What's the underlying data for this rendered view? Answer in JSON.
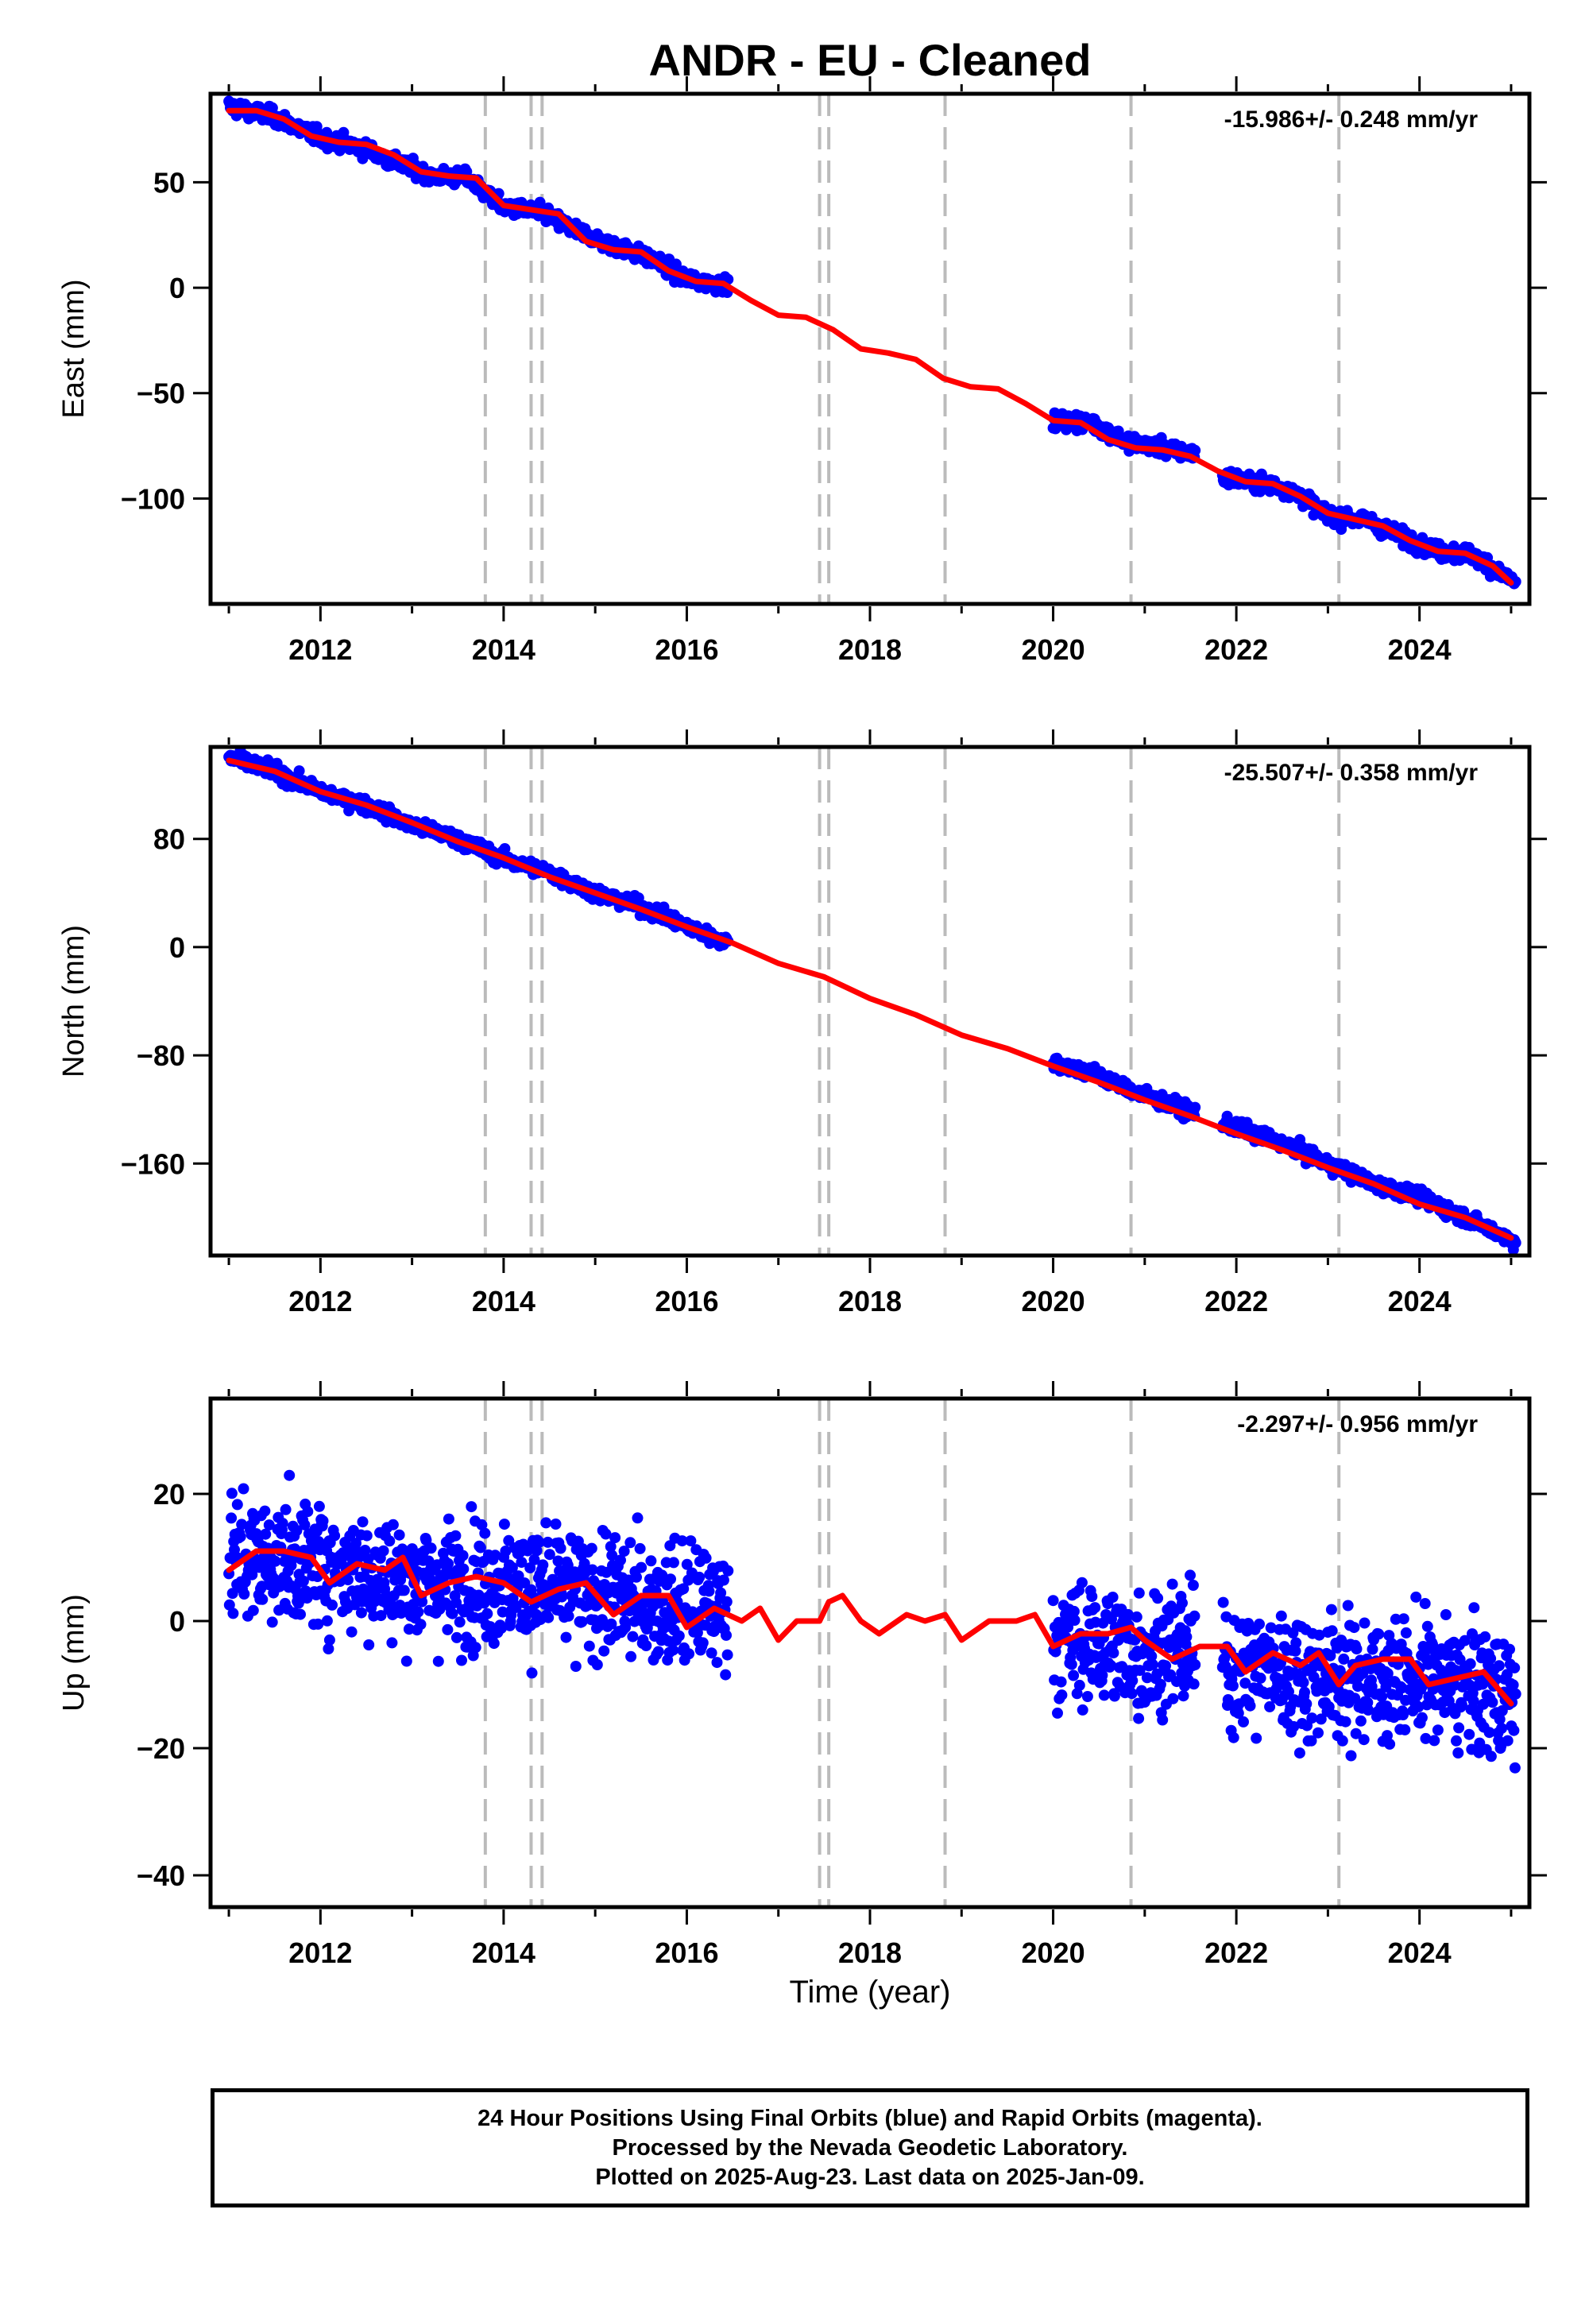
{
  "title": "ANDR  - EU - Cleaned",
  "xlabel": "Time (year)",
  "x_ticks": [
    "2012",
    "2014",
    "2016",
    "2018",
    "2020",
    "2022",
    "2024"
  ],
  "footer": {
    "line1": "24 Hour Positions Using Final Orbits (blue) and Rapid Orbits (magenta).",
    "line2": "Processed by the Nevada Geodetic Laboratory.",
    "line3": "Plotted on 2025-Aug-23. Last data on 2025-Jan-09."
  },
  "colors": {
    "points": "#0000ff",
    "model": "#ff0000",
    "steps": "#bbbbbb",
    "frame": "#000000"
  },
  "chart_data": [
    {
      "type": "scatter",
      "title": "ANDR  - EU - Cleaned",
      "ylabel": "East (mm)",
      "xlim": [
        2010.8,
        2025.2
      ],
      "ylim": [
        -150,
        92
      ],
      "y_ticks": [
        50,
        0,
        -50,
        -100
      ],
      "y_tick_labels": [
        "50",
        "0",
        "−50",
        "−100"
      ],
      "rate_label": "-15.986+/- 0.248 mm/yr",
      "step_lines": [
        2013.8,
        2014.3,
        2014.42,
        2017.45,
        2017.55,
        2018.82,
        2020.85,
        2023.12
      ],
      "data_segments": [
        [
          2011.0,
          2016.45
        ],
        [
          2020.0,
          2021.55
        ],
        [
          2021.85,
          2025.05
        ]
      ],
      "series": [
        {
          "name": "Final Orbits (blue)",
          "kind": "points",
          "noise": 3.5,
          "x": [
            2011.0,
            2011.5,
            2012.0,
            2012.4,
            2012.8,
            2013.2,
            2013.6,
            2014.0,
            2014.4,
            2014.8,
            2015.2,
            2015.6,
            2016.0,
            2016.45,
            2020.0,
            2020.4,
            2020.8,
            2021.2,
            2021.55,
            2021.85,
            2022.2,
            2022.6,
            2023.0,
            2023.4,
            2023.8,
            2024.2,
            2024.6,
            2025.05
          ],
          "y": [
            86,
            81,
            71,
            67,
            60,
            53,
            52,
            38,
            36,
            27,
            20,
            14,
            4,
            1,
            -63,
            -64,
            -73,
            -76,
            -79,
            -90,
            -92,
            -96,
            -108,
            -110,
            -118,
            -125,
            -127,
            -140
          ]
        },
        {
          "name": "model",
          "kind": "line",
          "x": [
            2011.0,
            2011.3,
            2011.6,
            2011.9,
            2012.2,
            2012.5,
            2012.8,
            2013.1,
            2013.4,
            2013.7,
            2014.0,
            2014.3,
            2014.6,
            2014.9,
            2015.2,
            2015.5,
            2015.8,
            2016.1,
            2016.4,
            2016.7,
            2017.0,
            2017.3,
            2017.6,
            2017.9,
            2018.2,
            2018.5,
            2018.8,
            2019.1,
            2019.4,
            2019.7,
            2020.0,
            2020.3,
            2020.6,
            2020.9,
            2021.2,
            2021.5,
            2021.8,
            2022.1,
            2022.4,
            2022.7,
            2023.0,
            2023.3,
            2023.6,
            2023.9,
            2024.2,
            2024.5,
            2024.8,
            2025.0
          ],
          "y": [
            84,
            84,
            80,
            72,
            69,
            68,
            63,
            55,
            53,
            52,
            39,
            37,
            35,
            22,
            18,
            17,
            8,
            3,
            2,
            -6,
            -13,
            -14,
            -20,
            -29,
            -31,
            -34,
            -43,
            -47,
            -48,
            -55,
            -63,
            -64,
            -72,
            -76,
            -77,
            -80,
            -87,
            -92,
            -93,
            -99,
            -107,
            -110,
            -113,
            -120,
            -125,
            -126,
            -132,
            -140
          ]
        }
      ]
    },
    {
      "type": "scatter",
      "ylabel": "North (mm)",
      "xlim": [
        2010.8,
        2025.2
      ],
      "ylim": [
        -228,
        148
      ],
      "y_ticks": [
        80,
        0,
        -80,
        -160
      ],
      "y_tick_labels": [
        "80",
        "0",
        "−80",
        "−160"
      ],
      "rate_label": "-25.507+/- 0.358 mm/yr",
      "step_lines": [
        2013.8,
        2014.3,
        2014.42,
        2017.45,
        2017.55,
        2018.82,
        2020.85,
        2023.12
      ],
      "data_segments": [
        [
          2011.0,
          2016.45
        ],
        [
          2020.0,
          2021.55
        ],
        [
          2021.85,
          2025.05
        ]
      ],
      "series": [
        {
          "name": "Final Orbits (blue)",
          "kind": "points",
          "noise": 5,
          "x": [
            2011.0,
            2011.5,
            2012.0,
            2012.5,
            2013.0,
            2013.5,
            2014.0,
            2014.5,
            2015.0,
            2015.5,
            2016.0,
            2016.45,
            2020.0,
            2020.5,
            2021.0,
            2021.55,
            2021.85,
            2022.5,
            2023.0,
            2023.5,
            2024.0,
            2024.5,
            2025.05
          ],
          "y": [
            140,
            130,
            115,
            105,
            90,
            80,
            65,
            55,
            40,
            30,
            15,
            3,
            -85,
            -95,
            -110,
            -123,
            -130,
            -145,
            -160,
            -175,
            -185,
            -200,
            -218
          ]
        },
        {
          "name": "model",
          "kind": "line",
          "x": [
            2011.0,
            2011.5,
            2012.0,
            2012.5,
            2013.0,
            2013.5,
            2014.0,
            2014.5,
            2015.0,
            2015.5,
            2016.0,
            2016.5,
            2017.0,
            2017.5,
            2018.0,
            2018.5,
            2019.0,
            2019.5,
            2020.0,
            2020.5,
            2021.0,
            2021.5,
            2022.0,
            2022.5,
            2023.0,
            2023.5,
            2024.0,
            2024.5,
            2025.0
          ],
          "y": [
            138,
            130,
            115,
            105,
            92,
            78,
            66,
            52,
            40,
            28,
            15,
            3,
            -12,
            -22,
            -38,
            -50,
            -65,
            -75,
            -88,
            -100,
            -113,
            -125,
            -138,
            -150,
            -163,
            -175,
            -190,
            -200,
            -215
          ]
        }
      ]
    },
    {
      "type": "scatter",
      "ylabel": "Up (mm)",
      "xlim": [
        2010.8,
        2025.2
      ],
      "ylim": [
        -45,
        35
      ],
      "y_ticks": [
        20,
        0,
        -20,
        -40
      ],
      "y_tick_labels": [
        "20",
        "0",
        "−20",
        "−40"
      ],
      "rate_label": "-2.297+/- 0.956 mm/yr",
      "step_lines": [
        2013.8,
        2014.3,
        2014.42,
        2017.45,
        2017.55,
        2018.82,
        2020.85,
        2023.12
      ],
      "data_segments": [
        [
          2011.0,
          2016.45
        ],
        [
          2020.0,
          2021.55
        ],
        [
          2021.85,
          2025.05
        ]
      ],
      "series": [
        {
          "name": "Final Orbits (blue)",
          "kind": "points",
          "noise": 9,
          "x": [
            2011.0,
            2012.0,
            2013.0,
            2014.0,
            2015.0,
            2016.0,
            2016.45,
            2020.0,
            2021.0,
            2021.55,
            2021.85,
            2023.0,
            2024.0,
            2025.05
          ],
          "y": [
            10,
            9,
            6,
            6,
            4,
            2,
            2,
            -3,
            -5,
            -4,
            -7,
            -9,
            -9,
            -12
          ]
        },
        {
          "name": "model",
          "kind": "line",
          "x": [
            2011.0,
            2011.3,
            2011.6,
            2011.9,
            2012.1,
            2012.4,
            2012.7,
            2012.9,
            2013.1,
            2013.4,
            2013.7,
            2014.0,
            2014.3,
            2014.6,
            2014.9,
            2015.2,
            2015.5,
            2015.8,
            2016.0,
            2016.3,
            2016.6,
            2016.8,
            2017.0,
            2017.2,
            2017.45,
            2017.55,
            2017.7,
            2017.9,
            2018.1,
            2018.4,
            2018.6,
            2018.82,
            2019.0,
            2019.3,
            2019.6,
            2019.8,
            2020.0,
            2020.3,
            2020.6,
            2020.85,
            2021.0,
            2021.3,
            2021.6,
            2021.9,
            2022.1,
            2022.4,
            2022.7,
            2022.9,
            2023.12,
            2023.3,
            2023.6,
            2023.9,
            2024.1,
            2024.4,
            2024.7,
            2025.0
          ],
          "y": [
            8,
            11,
            11,
            10,
            6,
            9,
            8,
            10,
            4,
            6,
            7,
            6,
            3,
            5,
            6,
            1,
            4,
            4,
            -1,
            2,
            0,
            2,
            -3,
            0,
            0,
            3,
            4,
            0,
            -2,
            1,
            0,
            1,
            -3,
            0,
            0,
            1,
            -4,
            -2,
            -2,
            -1,
            -3,
            -6,
            -4,
            -4,
            -8,
            -5,
            -7,
            -5,
            -10,
            -7,
            -6,
            -6,
            -10,
            -9,
            -8,
            -13
          ]
        }
      ]
    }
  ]
}
